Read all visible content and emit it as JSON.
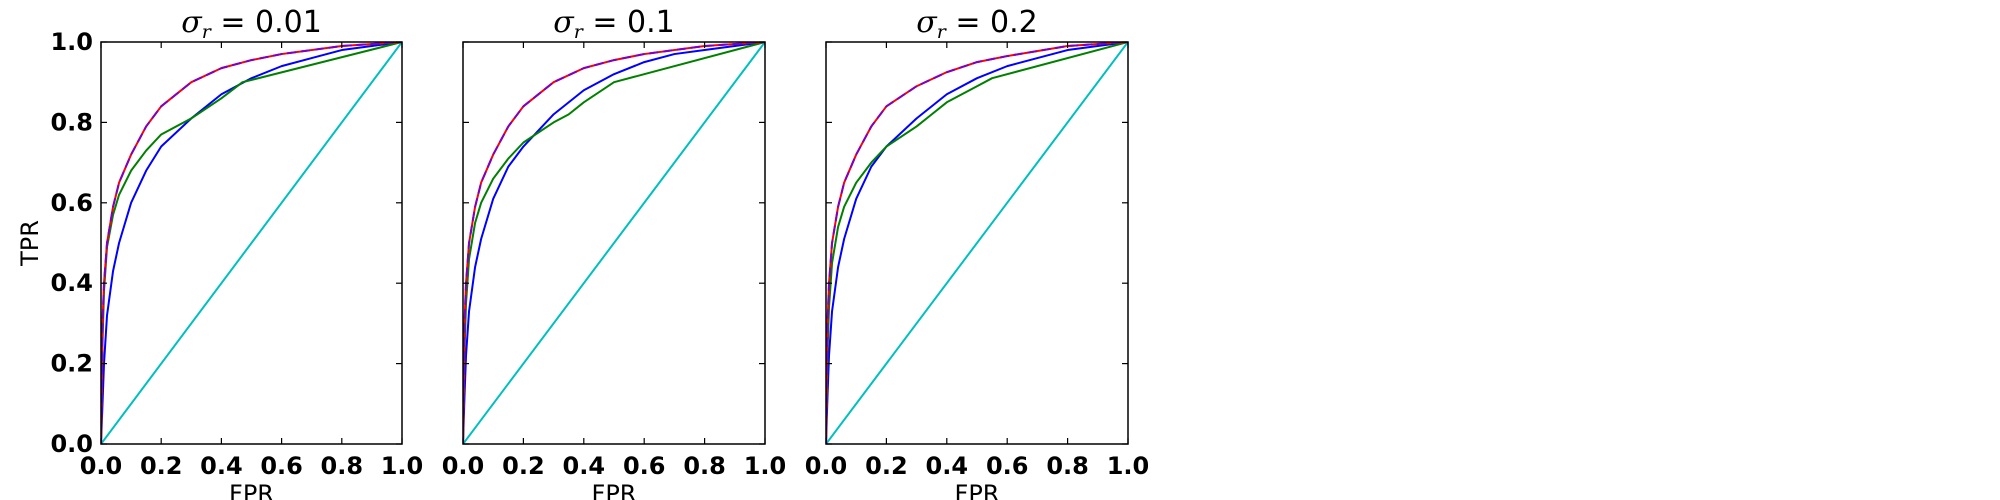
{
  "chart_data": [
    {
      "type": "line",
      "title": {
        "symbol": "σ",
        "subscript": "r",
        "value_text": " = 0.01"
      },
      "xlabel": "FPR",
      "ylabel": "TPR",
      "xlim": [
        0,
        1
      ],
      "ylim": [
        0,
        1
      ],
      "xticks": [
        "0.0",
        "0.2",
        "0.4",
        "0.6",
        "0.8",
        "1.0"
      ],
      "yticks": [
        "0.0",
        "0.2",
        "0.4",
        "0.6",
        "0.8",
        "1.0"
      ],
      "grid": false,
      "series": [
        {
          "color": "#00bfbf",
          "dash": "solid",
          "x": [
            0,
            1
          ],
          "y": [
            0,
            1
          ]
        },
        {
          "color": "#0000ff",
          "dash": "solid",
          "x": [
            0,
            0.005,
            0.01,
            0.02,
            0.04,
            0.06,
            0.1,
            0.15,
            0.2,
            0.3,
            0.4,
            0.5,
            0.6,
            0.7,
            0.8,
            0.9,
            1.0
          ],
          "y": [
            0,
            0.1,
            0.2,
            0.32,
            0.43,
            0.5,
            0.6,
            0.68,
            0.74,
            0.81,
            0.87,
            0.91,
            0.94,
            0.96,
            0.98,
            0.99,
            1.0
          ]
        },
        {
          "color": "#008000",
          "dash": "solid",
          "x": [
            0,
            0.005,
            0.01,
            0.02,
            0.04,
            0.06,
            0.1,
            0.15,
            0.2,
            0.3,
            0.4,
            0.47,
            1.0
          ],
          "y": [
            0,
            0.25,
            0.38,
            0.49,
            0.57,
            0.62,
            0.68,
            0.73,
            0.77,
            0.81,
            0.86,
            0.9,
            1.0
          ]
        },
        {
          "color": "#ff0000",
          "dash": "solid",
          "x": [
            0,
            0.005,
            0.01,
            0.02,
            0.04,
            0.06,
            0.1,
            0.15,
            0.2,
            0.3,
            0.4,
            0.5,
            0.6,
            0.8,
            1.0
          ],
          "y": [
            0,
            0.3,
            0.4,
            0.5,
            0.59,
            0.65,
            0.72,
            0.79,
            0.84,
            0.9,
            0.935,
            0.955,
            0.97,
            0.99,
            1.0
          ]
        },
        {
          "color": "#7f00bf",
          "dash": "dashed",
          "x": [
            0,
            0.005,
            0.01,
            0.02,
            0.04,
            0.06,
            0.1,
            0.15,
            0.2,
            0.3,
            0.4,
            0.5,
            0.6,
            0.8,
            1.0
          ],
          "y": [
            0,
            0.3,
            0.4,
            0.5,
            0.59,
            0.65,
            0.72,
            0.79,
            0.84,
            0.9,
            0.935,
            0.955,
            0.97,
            0.99,
            1.0
          ]
        }
      ]
    },
    {
      "type": "line",
      "title": {
        "symbol": "σ",
        "subscript": "r",
        "value_text": " = 0.1"
      },
      "xlabel": "FPR",
      "ylabel": "",
      "xlim": [
        0,
        1
      ],
      "ylim": [
        0,
        1
      ],
      "xticks": [
        "0.0",
        "0.2",
        "0.4",
        "0.6",
        "0.8",
        "1.0"
      ],
      "yticks": [],
      "grid": false,
      "series": [
        {
          "color": "#00bfbf",
          "dash": "solid",
          "x": [
            0,
            1
          ],
          "y": [
            0,
            1
          ]
        },
        {
          "color": "#0000ff",
          "dash": "solid",
          "x": [
            0,
            0.005,
            0.01,
            0.02,
            0.04,
            0.06,
            0.1,
            0.15,
            0.2,
            0.3,
            0.4,
            0.5,
            0.6,
            0.7,
            0.8,
            0.9,
            1.0
          ],
          "y": [
            0,
            0.12,
            0.22,
            0.33,
            0.44,
            0.51,
            0.61,
            0.69,
            0.74,
            0.82,
            0.88,
            0.92,
            0.95,
            0.97,
            0.98,
            0.99,
            1.0
          ]
        },
        {
          "color": "#008000",
          "dash": "solid",
          "x": [
            0,
            0.005,
            0.01,
            0.02,
            0.04,
            0.06,
            0.1,
            0.15,
            0.2,
            0.3,
            0.35,
            0.4,
            0.5,
            1.0
          ],
          "y": [
            0,
            0.23,
            0.35,
            0.46,
            0.55,
            0.6,
            0.66,
            0.71,
            0.75,
            0.8,
            0.82,
            0.85,
            0.9,
            1.0
          ]
        },
        {
          "color": "#ff0000",
          "dash": "solid",
          "x": [
            0,
            0.005,
            0.01,
            0.02,
            0.04,
            0.06,
            0.1,
            0.15,
            0.2,
            0.3,
            0.4,
            0.5,
            0.6,
            0.8,
            1.0
          ],
          "y": [
            0,
            0.3,
            0.4,
            0.5,
            0.59,
            0.65,
            0.72,
            0.79,
            0.84,
            0.9,
            0.935,
            0.955,
            0.97,
            0.99,
            1.0
          ]
        },
        {
          "color": "#7f00bf",
          "dash": "dashed",
          "x": [
            0,
            0.005,
            0.01,
            0.02,
            0.04,
            0.06,
            0.1,
            0.15,
            0.2,
            0.3,
            0.4,
            0.5,
            0.6,
            0.8,
            1.0
          ],
          "y": [
            0,
            0.3,
            0.4,
            0.5,
            0.59,
            0.65,
            0.72,
            0.79,
            0.84,
            0.9,
            0.935,
            0.955,
            0.97,
            0.99,
            1.0
          ]
        }
      ]
    },
    {
      "type": "line",
      "title": {
        "symbol": "σ",
        "subscript": "r",
        "value_text": " = 0.2"
      },
      "xlabel": "FPR",
      "ylabel": "",
      "xlim": [
        0,
        1
      ],
      "ylim": [
        0,
        1
      ],
      "xticks": [
        "0.0",
        "0.2",
        "0.4",
        "0.6",
        "0.8",
        "1.0"
      ],
      "yticks": [],
      "grid": false,
      "series": [
        {
          "color": "#00bfbf",
          "dash": "solid",
          "x": [
            0,
            1
          ],
          "y": [
            0,
            1
          ]
        },
        {
          "color": "#0000ff",
          "dash": "solid",
          "x": [
            0,
            0.005,
            0.01,
            0.02,
            0.04,
            0.06,
            0.1,
            0.15,
            0.2,
            0.3,
            0.4,
            0.5,
            0.6,
            0.7,
            0.8,
            0.9,
            1.0
          ],
          "y": [
            0,
            0.12,
            0.22,
            0.33,
            0.44,
            0.51,
            0.61,
            0.69,
            0.74,
            0.81,
            0.87,
            0.91,
            0.94,
            0.96,
            0.98,
            0.99,
            1.0
          ]
        },
        {
          "color": "#008000",
          "dash": "solid",
          "x": [
            0,
            0.005,
            0.01,
            0.02,
            0.04,
            0.06,
            0.1,
            0.15,
            0.2,
            0.3,
            0.35,
            0.4,
            0.5,
            0.55,
            1.0
          ],
          "y": [
            0,
            0.23,
            0.34,
            0.45,
            0.54,
            0.59,
            0.65,
            0.7,
            0.74,
            0.79,
            0.82,
            0.85,
            0.89,
            0.91,
            1.0
          ]
        },
        {
          "color": "#ff0000",
          "dash": "solid",
          "x": [
            0,
            0.005,
            0.01,
            0.02,
            0.04,
            0.06,
            0.1,
            0.15,
            0.2,
            0.3,
            0.4,
            0.5,
            0.6,
            0.8,
            1.0
          ],
          "y": [
            0,
            0.3,
            0.4,
            0.5,
            0.59,
            0.65,
            0.72,
            0.79,
            0.84,
            0.89,
            0.925,
            0.95,
            0.965,
            0.99,
            1.0
          ]
        },
        {
          "color": "#7f00bf",
          "dash": "dashed",
          "x": [
            0,
            0.005,
            0.01,
            0.02,
            0.04,
            0.06,
            0.1,
            0.15,
            0.2,
            0.3,
            0.4,
            0.5,
            0.6,
            0.8,
            1.0
          ],
          "y": [
            0,
            0.3,
            0.4,
            0.5,
            0.59,
            0.65,
            0.72,
            0.79,
            0.84,
            0.89,
            0.925,
            0.95,
            0.965,
            0.99,
            1.0
          ]
        }
      ]
    }
  ]
}
